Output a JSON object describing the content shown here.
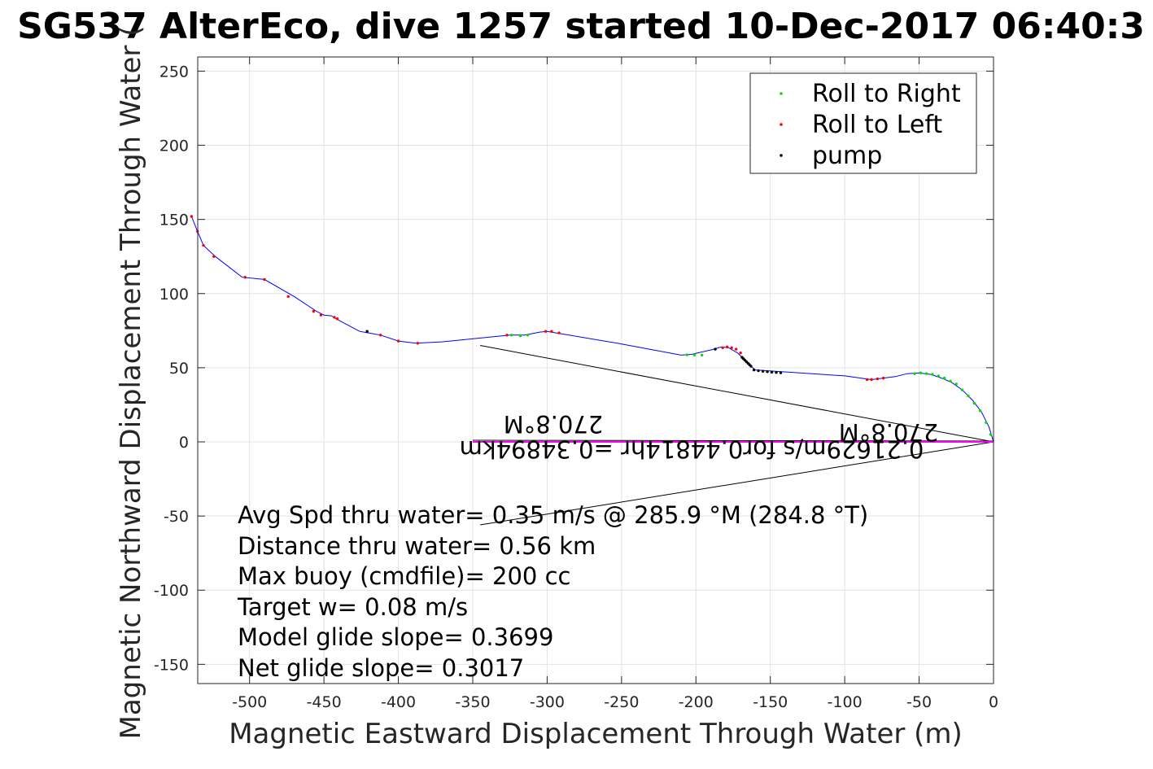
{
  "chart_data": {
    "type": "line",
    "title": "SG537 AlterEco, dive 1257 started 10-Dec-2017 06:40:3",
    "xlabel": "Magnetic Eastward Displacement Through Water (m)",
    "ylabel": "Magnetic Northward Displacement Through Water (",
    "xlim": [
      -540,
      0
    ],
    "ylim": [
      -163,
      260
    ],
    "x_ticks": [
      "-500",
      "-450",
      "-400",
      "-350",
      "-300",
      "-250",
      "-200",
      "-150",
      "-100",
      "-50",
      "0"
    ],
    "y_ticks": [
      "250",
      "200",
      "150",
      "100",
      "50",
      "0",
      "-50",
      "-100",
      "-150"
    ],
    "grid": true,
    "legend_position": "top-right",
    "legend": [
      {
        "label": "Roll to Right",
        "color": "#00dd00"
      },
      {
        "label": "Roll to Left",
        "color": "#ff0000"
      },
      {
        "label": "pump",
        "color": "#000000"
      }
    ],
    "track_color": "#0000ff",
    "magenta_color": "#ff00ff",
    "track": {
      "x": [
        0,
        -3,
        -8,
        -14,
        -21,
        -28,
        -35,
        -42,
        -50,
        -58,
        -66,
        -74,
        -82,
        -100,
        -130,
        -160,
        -163,
        -167,
        -172,
        -178,
        -183,
        -190,
        -203,
        -210,
        -250,
        -300,
        -305,
        -315,
        -325,
        -340,
        -370,
        -388,
        -400,
        -412,
        -420,
        -426,
        -440,
        -445,
        -450,
        -455,
        -470,
        -490,
        -505,
        -523,
        -531,
        -535,
        -539
      ],
      "y": [
        0,
        10,
        20,
        28,
        35,
        40,
        43,
        45.5,
        46.5,
        46,
        44,
        43,
        42,
        44.5,
        46.5,
        48.5,
        51,
        55,
        60,
        63.5,
        64,
        62,
        59,
        58.5,
        66,
        74.5,
        74,
        72,
        72,
        70.5,
        67.5,
        66.5,
        68,
        72,
        73.5,
        74.5,
        82,
        85,
        85.5,
        88,
        98,
        109.5,
        111,
        125,
        132.5,
        142,
        152
      ]
    },
    "roll_right_points": {
      "x": [
        -2,
        -5,
        -9,
        -13,
        -17,
        -21,
        -25,
        -29,
        -33,
        -37,
        -41,
        -45,
        -49,
        -53,
        -196,
        -201,
        -206,
        -313,
        -318,
        -324
      ],
      "y": [
        5,
        13,
        21,
        26,
        31,
        35,
        39,
        41,
        43,
        44.5,
        45.5,
        46,
        46.5,
        46,
        58.5,
        58.6,
        58.7,
        72,
        71.5,
        72
      ]
    },
    "roll_left_points": {
      "x": [
        -74,
        -78,
        -82,
        -85,
        -170,
        -173,
        -176,
        -179,
        -182,
        -292,
        -297,
        -301,
        -327,
        -387,
        -400,
        -412,
        -441,
        -443,
        -452,
        -457,
        -474,
        -490,
        -503,
        -524,
        -531,
        -535,
        -539
      ],
      "y": [
        43,
        42.5,
        42,
        42,
        60,
        62.5,
        63.5,
        64,
        63.5,
        73.5,
        74.5,
        74.5,
        72,
        66.5,
        68,
        72,
        83,
        84,
        85.5,
        88,
        98,
        109.5,
        111,
        125,
        132.5,
        142,
        152
      ]
    },
    "pump_points": {
      "x": [
        -143,
        -146,
        -149,
        -152,
        -155,
        -158,
        -161,
        -163,
        -164,
        -165,
        -166,
        -167,
        -168,
        -169,
        -187,
        -421
      ],
      "y": [
        46.6,
        46.8,
        47,
        47.3,
        47.6,
        48,
        48.5,
        51,
        52,
        53,
        54,
        55,
        56,
        57,
        62.5,
        74.5
      ]
    },
    "current_vectors": {
      "mean_line": {
        "x": [
          0,
          -350
        ],
        "y": [
          0,
          0
        ]
      },
      "upper_line": {
        "x": [
          0,
          -345
        ],
        "y": [
          0,
          65
        ]
      },
      "lower_line": {
        "x": [
          0,
          -345
        ],
        "y": [
          0,
          -56
        ]
      }
    },
    "flipped_labels": [
      "270.8°M",
      "0.21629m/s for0.44814hr =0.34894km",
      "270.8°M"
    ],
    "annotations": [
      "Avg Spd thru water=  0.35 m/s @ 285.9 °M (284.8 °T)",
      "Distance thru water=  0.56 km",
      "Max buoy (cmdfile)= 200 cc",
      "Target w= 0.08 m/s",
      "Model glide slope= 0.3699",
      "Net glide slope= 0.3017"
    ]
  }
}
